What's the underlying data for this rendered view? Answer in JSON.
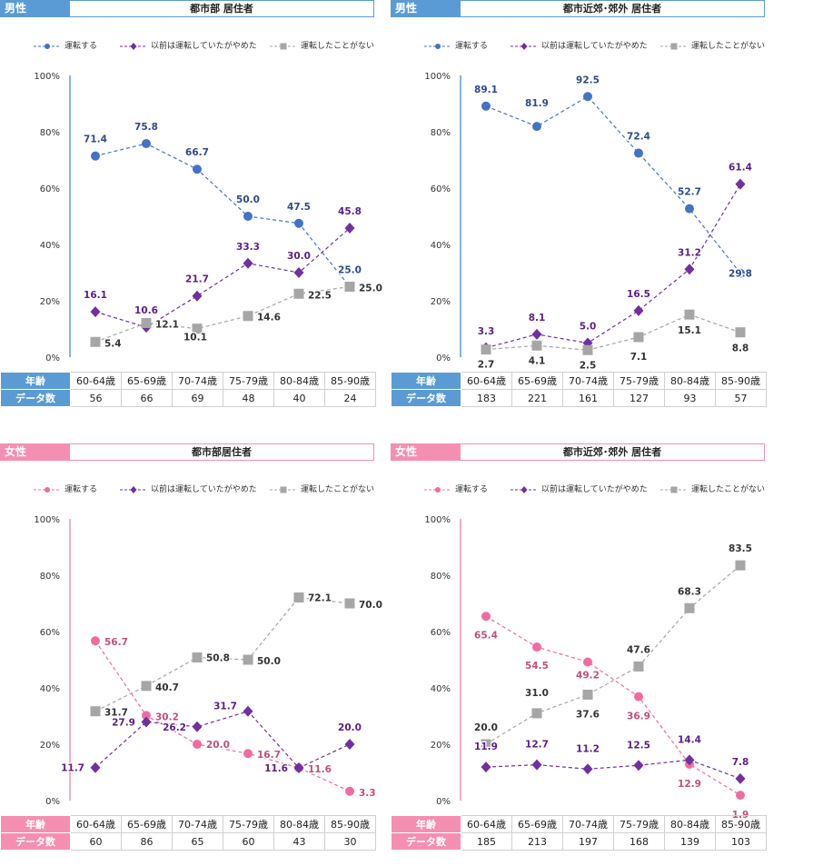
{
  "colors": {
    "male_accent": "#5b9bd5",
    "female_accent": "#f48fb1",
    "series_drive_male": "#4472c4",
    "series_drive_female": "#f06ca0",
    "series_stopped": "#7030a0",
    "series_never": "#a6a6a6"
  },
  "table_labels": {
    "age": "年齢",
    "count": "データ数"
  },
  "age_groups": [
    "60-64歳",
    "65-69歳",
    "70-74歳",
    "75-79歳",
    "80-84歳",
    "85-90歳"
  ],
  "legend_labels": [
    "運転する",
    "以前は運転していたがやめた",
    "運転したことがない"
  ],
  "y_ticks": [
    "0%",
    "20%",
    "40%",
    "60%",
    "80%",
    "100%"
  ],
  "panels": [
    {
      "gender": "男性",
      "location": "都市部 居住者",
      "theme": "male",
      "counts": [
        "56",
        "66",
        "69",
        "48",
        "40",
        "24"
      ]
    },
    {
      "gender": "男性",
      "location": "都市近郊･郊外 居住者",
      "theme": "male",
      "counts": [
        "183",
        "221",
        "161",
        "127",
        "93",
        "57"
      ]
    },
    {
      "gender": "女性",
      "location": "都市部居住者",
      "theme": "female",
      "counts": [
        "60",
        "86",
        "65",
        "60",
        "43",
        "30"
      ]
    },
    {
      "gender": "女性",
      "location": "都市近郊･郊外 居住者",
      "theme": "female",
      "counts": [
        "185",
        "213",
        "197",
        "168",
        "139",
        "103"
      ]
    }
  ],
  "chart_data": [
    {
      "type": "line",
      "title": "男性 都市部 居住者",
      "categories": [
        "60-64歳",
        "65-69歳",
        "70-74歳",
        "75-79歳",
        "80-84歳",
        "85-90歳"
      ],
      "ylim": [
        0,
        100
      ],
      "series": [
        {
          "name": "運転する",
          "values": [
            71.4,
            75.8,
            66.7,
            50.0,
            47.5,
            25.0
          ]
        },
        {
          "name": "以前は運転していたがやめた",
          "values": [
            16.1,
            10.6,
            21.7,
            33.3,
            30.0,
            45.8
          ]
        },
        {
          "name": "運転したことがない",
          "values": [
            5.4,
            12.1,
            10.1,
            14.6,
            22.5,
            25.0
          ]
        }
      ]
    },
    {
      "type": "line",
      "title": "男性 都市近郊･郊外 居住者",
      "categories": [
        "60-64歳",
        "65-69歳",
        "70-74歳",
        "75-79歳",
        "80-84歳",
        "85-90歳"
      ],
      "ylim": [
        0,
        100
      ],
      "series": [
        {
          "name": "運転する",
          "values": [
            89.1,
            81.9,
            92.5,
            72.4,
            52.7,
            29.8
          ]
        },
        {
          "name": "以前は運転していたがやめた",
          "values": [
            3.3,
            8.1,
            5.0,
            16.5,
            31.2,
            61.4
          ]
        },
        {
          "name": "運転したことがない",
          "values": [
            2.7,
            4.1,
            2.5,
            7.1,
            15.1,
            8.8
          ]
        }
      ]
    },
    {
      "type": "line",
      "title": "女性 都市部居住者",
      "categories": [
        "60-64歳",
        "65-69歳",
        "70-74歳",
        "75-79歳",
        "80-84歳",
        "85-90歳"
      ],
      "ylim": [
        0,
        100
      ],
      "series": [
        {
          "name": "運転する",
          "values": [
            56.7,
            30.2,
            20.0,
            16.7,
            11.6,
            3.3
          ]
        },
        {
          "name": "以前は運転していたがやめた",
          "values": [
            11.7,
            27.9,
            26.2,
            31.7,
            11.6,
            20.0
          ]
        },
        {
          "name": "運転したことがない",
          "values": [
            31.7,
            40.7,
            50.8,
            50.0,
            72.1,
            70.0
          ]
        }
      ]
    },
    {
      "type": "line",
      "title": "女性 都市近郊･郊外 居住者",
      "categories": [
        "60-64歳",
        "65-69歳",
        "70-74歳",
        "75-79歳",
        "80-84歳",
        "85-90歳"
      ],
      "ylim": [
        0,
        100
      ],
      "series": [
        {
          "name": "運転する",
          "values": [
            65.4,
            54.5,
            49.2,
            36.9,
            12.9,
            1.9
          ]
        },
        {
          "name": "以前は運転していたがやめた",
          "values": [
            11.9,
            12.7,
            11.2,
            12.5,
            14.4,
            7.8
          ]
        },
        {
          "name": "運転したことがない",
          "values": [
            20.0,
            31.0,
            37.6,
            47.6,
            68.3,
            83.5
          ]
        }
      ]
    }
  ]
}
